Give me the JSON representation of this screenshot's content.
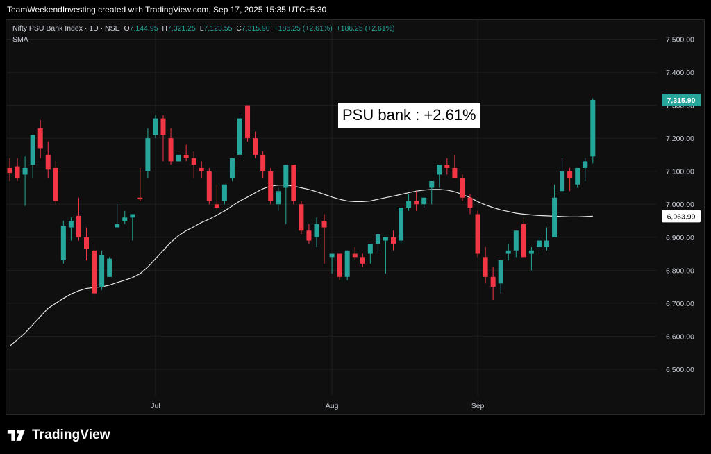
{
  "header": {
    "caption": "TeamWeekendInvesting created with TradingView.com, Sep 17, 2025 15:35 UTC+5:30"
  },
  "legend": {
    "symbol": "Nifty PSU Bank Index · 1D · NSE",
    "o_label": "O",
    "o_value": "7,144.95",
    "h_label": "H",
    "h_value": "7,321.25",
    "l_label": "L",
    "l_value": "7,123.55",
    "c_label": "C",
    "c_value": "7,315.90",
    "change": "+186.25 (+2.61%)",
    "change2": "+186.25 (+2.61%)",
    "indicator": "SMA"
  },
  "annotation": {
    "text": "PSU bank : +2.61%"
  },
  "brand": {
    "name": "TradingView",
    "logo_icon": "tradingview-logo-icon"
  },
  "colors": {
    "up": "#26a69a",
    "down": "#f23645",
    "sma": "#e8e8e8",
    "grid": "#1f1f1f",
    "axis_text": "#c7cbd4",
    "last_price_bg": "#26a69a",
    "sma_badge_bg": "#ffffff"
  },
  "chart_data": {
    "type": "candlestick",
    "title": "Nifty PSU Bank Index · 1D · NSE",
    "ylim": [
      6420,
      7560
    ],
    "y_ticks": [
      6500,
      6600,
      6700,
      6800,
      6900,
      7000,
      7100,
      7200,
      7300,
      7400,
      7500
    ],
    "y_tick_labels": [
      "6,500.00",
      "6,600.00",
      "6,700.00",
      "6,800.00",
      "6,900.00",
      "7,000.00",
      "7,100.00",
      "7,200.00",
      "7,300.00",
      "7,400.00",
      "7,500.00"
    ],
    "x_tick_labels": [
      {
        "index": 19,
        "label": "Jul"
      },
      {
        "index": 42,
        "label": "Aug"
      },
      {
        "index": 61,
        "label": "Sep"
      }
    ],
    "last_price_label": "7,315.90",
    "sma_last_label": "6,963.99",
    "grid": true,
    "candles": [
      [
        7110,
        7140,
        7070,
        7095
      ],
      [
        7115,
        7140,
        7070,
        7080
      ],
      [
        7090,
        7145,
        6995,
        7110
      ],
      [
        7120,
        7200,
        7080,
        7210
      ],
      [
        7230,
        7255,
        7140,
        7170
      ],
      [
        7150,
        7190,
        7080,
        7105
      ],
      [
        7110,
        7130,
        7000,
        7010
      ],
      [
        6830,
        6950,
        6820,
        6935
      ],
      [
        6930,
        6960,
        6890,
        6950
      ],
      [
        6965,
        7020,
        6890,
        6900
      ],
      [
        6900,
        6930,
        6830,
        6865
      ],
      [
        6860,
        6880,
        6710,
        6730
      ],
      [
        6750,
        6860,
        6740,
        6845
      ],
      [
        6780,
        6840,
        6780,
        6835
      ],
      [
        6930,
        7000,
        6930,
        6940
      ],
      [
        6950,
        6980,
        6940,
        6960
      ],
      [
        6960,
        6970,
        6890,
        6970
      ],
      [
        7020,
        7110,
        7010,
        7015
      ],
      [
        7100,
        7230,
        7080,
        7200
      ],
      [
        7210,
        7270,
        7200,
        7260
      ],
      [
        7260,
        7270,
        7130,
        7210
      ],
      [
        7200,
        7230,
        7120,
        7130
      ],
      [
        7130,
        7150,
        7130,
        7150
      ],
      [
        7150,
        7180,
        7130,
        7140
      ],
      [
        7140,
        7160,
        7080,
        7120
      ],
      [
        7110,
        7130,
        7080,
        7100
      ],
      [
        7100,
        7110,
        7000,
        7010
      ],
      [
        7000,
        7060,
        6980,
        6990
      ],
      [
        7010,
        7060,
        7000,
        7060
      ],
      [
        7080,
        7140,
        7070,
        7140
      ],
      [
        7150,
        7280,
        7140,
        7260
      ],
      [
        7300,
        7300,
        7190,
        7200
      ],
      [
        7200,
        7220,
        7140,
        7150
      ],
      [
        7150,
        7160,
        7080,
        7100
      ],
      [
        7100,
        7110,
        7000,
        7010
      ],
      [
        7000,
        7050,
        6980,
        7040
      ],
      [
        7050,
        7120,
        6940,
        7120
      ],
      [
        7120,
        7120,
        7000,
        7010
      ],
      [
        7000,
        7010,
        6910,
        6920
      ],
      [
        6920,
        6940,
        6880,
        6890
      ],
      [
        6900,
        6960,
        6870,
        6940
      ],
      [
        6950,
        6970,
        6820,
        6930
      ],
      [
        6840,
        6850,
        6790,
        6850
      ],
      [
        6850,
        6850,
        6770,
        6780
      ],
      [
        6780,
        6860,
        6770,
        6860
      ],
      [
        6850,
        6870,
        6830,
        6840
      ],
      [
        6840,
        6850,
        6810,
        6820
      ],
      [
        6850,
        6880,
        6820,
        6880
      ],
      [
        6880,
        6910,
        6850,
        6910
      ],
      [
        6890,
        6900,
        6790,
        6900
      ],
      [
        6900,
        6920,
        6860,
        6880
      ],
      [
        6890,
        6990,
        6880,
        6990
      ],
      [
        6990,
        7030,
        6980,
        7010
      ],
      [
        7010,
        7040,
        6980,
        7000
      ],
      [
        7000,
        7010,
        6990,
        7020
      ],
      [
        7050,
        7060,
        7000,
        7070
      ],
      [
        7090,
        7120,
        7050,
        7120
      ],
      [
        7120,
        7140,
        7090,
        7110
      ],
      [
        7110,
        7150,
        7080,
        7080
      ],
      [
        7080,
        7090,
        7010,
        7020
      ],
      [
        7020,
        7030,
        6970,
        6990
      ],
      [
        6970,
        6980,
        6840,
        6850
      ],
      [
        6840,
        6870,
        6760,
        6780
      ],
      [
        6780,
        6810,
        6710,
        6750
      ],
      [
        6760,
        6830,
        6730,
        6830
      ],
      [
        6850,
        6880,
        6830,
        6860
      ],
      [
        6860,
        6920,
        6840,
        6920
      ],
      [
        6940,
        6960,
        6840,
        6840
      ],
      [
        6850,
        6870,
        6800,
        6860
      ],
      [
        6870,
        6900,
        6850,
        6890
      ],
      [
        6870,
        6930,
        6860,
        6890
      ],
      [
        6900,
        7060,
        6900,
        7020
      ],
      [
        7040,
        7140,
        7040,
        7100
      ],
      [
        7100,
        7110,
        7040,
        7080
      ],
      [
        7060,
        7110,
        7050,
        7110
      ],
      [
        7110,
        7140,
        7070,
        7130
      ],
      [
        7145,
        7321,
        7124,
        7316
      ]
    ],
    "sma": [
      6570,
      6590,
      6610,
      6635,
      6660,
      6685,
      6700,
      6715,
      6728,
      6738,
      6745,
      6748,
      6750,
      6755,
      6763,
      6770,
      6778,
      6790,
      6810,
      6835,
      6860,
      6885,
      6905,
      6920,
      6932,
      6945,
      6955,
      6967,
      6980,
      6995,
      7010,
      7022,
      7035,
      7047,
      7055,
      7058,
      7058,
      7055,
      7050,
      7045,
      7038,
      7030,
      7022,
      7015,
      7010,
      7008,
      7008,
      7010,
      7015,
      7020,
      7025,
      7030,
      7035,
      7040,
      7043,
      7045,
      7045,
      7043,
      7038,
      7030,
      7020,
      7008,
      6998,
      6990,
      6983,
      6978,
      6973,
      6970,
      6968,
      6966,
      6965,
      6964,
      6963,
      6962,
      6962,
      6963,
      6964
    ]
  }
}
